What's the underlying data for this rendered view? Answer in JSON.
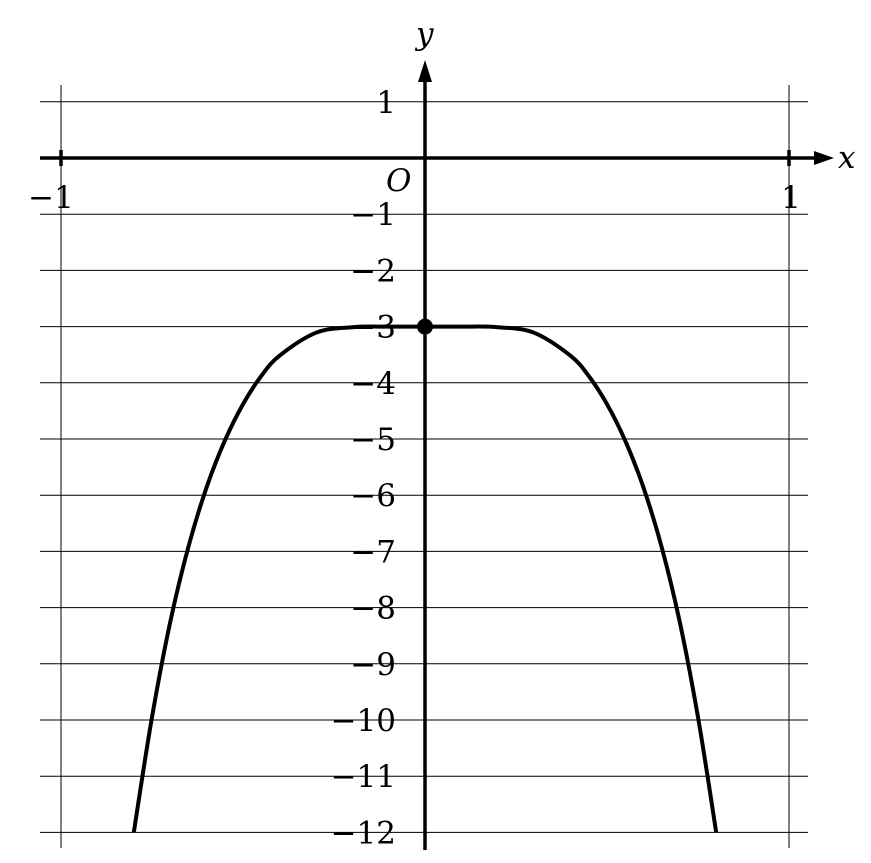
{
  "chart_data": {
    "type": "line",
    "xlabel": "x",
    "ylabel": "y",
    "origin_label": "O",
    "xlim": [
      -1,
      1
    ],
    "ylim": [
      -12,
      1
    ],
    "x_ticks": [
      {
        "value": -1,
        "label": "−1"
      },
      {
        "value": 1,
        "label": "1"
      }
    ],
    "y_ticks": [
      {
        "value": 1,
        "label": "1"
      },
      {
        "value": -1,
        "label": "−1"
      },
      {
        "value": -2,
        "label": "−2"
      },
      {
        "value": -3,
        "label": "−3"
      },
      {
        "value": -4,
        "label": "−4"
      },
      {
        "value": -5,
        "label": "−5"
      },
      {
        "value": -6,
        "label": "−6"
      },
      {
        "value": -7,
        "label": "−7"
      },
      {
        "value": -8,
        "label": "−8"
      },
      {
        "value": -9,
        "label": "−9"
      },
      {
        "value": -10,
        "label": "−10"
      },
      {
        "value": -11,
        "label": "−11"
      },
      {
        "value": -12,
        "label": "−12"
      }
    ],
    "grid": true,
    "series": [
      {
        "x": [
          -0.8,
          -0.75,
          -0.7,
          -0.65,
          -0.6,
          -0.55,
          -0.5,
          -0.45,
          -0.4,
          -0.3,
          -0.2,
          -0.1,
          0,
          0.1,
          0.2,
          0.3,
          0.4,
          0.45,
          0.5,
          0.55,
          0.6,
          0.65,
          0.7,
          0.75,
          0.8
        ],
        "y": [
          -12.0,
          -9.95,
          -8.26,
          -6.92,
          -5.86,
          -5.03,
          -4.38,
          -3.88,
          -3.52,
          -3.11,
          -3.01,
          -3.0,
          -3.0,
          -3.0,
          -3.01,
          -3.11,
          -3.52,
          -3.88,
          -4.38,
          -5.03,
          -5.86,
          -6.92,
          -8.26,
          -9.95,
          -12.0
        ],
        "color": "#000000"
      }
    ],
    "marked_points": [
      {
        "x": 0,
        "y": -3
      }
    ]
  }
}
